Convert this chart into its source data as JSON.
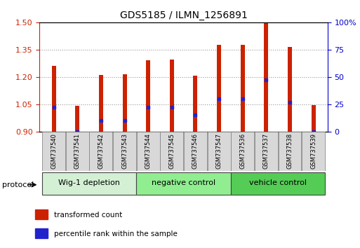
{
  "title": "GDS5185 / ILMN_1256891",
  "samples": [
    "GSM737540",
    "GSM737541",
    "GSM737542",
    "GSM737543",
    "GSM737544",
    "GSM737545",
    "GSM737546",
    "GSM737547",
    "GSM737536",
    "GSM737537",
    "GSM737538",
    "GSM737539"
  ],
  "bar_tops": [
    1.26,
    1.04,
    1.21,
    1.215,
    1.29,
    1.295,
    1.205,
    1.375,
    1.375,
    1.5,
    1.365,
    1.045
  ],
  "bar_base": 0.9,
  "percentile_values": [
    22,
    0,
    10,
    10,
    22,
    22,
    15,
    30,
    30,
    47,
    27,
    0
  ],
  "groups": [
    {
      "label": "Wig-1 depletion",
      "start": 0,
      "end": 4,
      "color": "#d4f0d4"
    },
    {
      "label": "negative control",
      "start": 4,
      "end": 8,
      "color": "#90ee90"
    },
    {
      "label": "vehicle control",
      "start": 8,
      "end": 12,
      "color": "#55cc55"
    }
  ],
  "ylim_left": [
    0.9,
    1.5
  ],
  "ylim_right": [
    0,
    100
  ],
  "yticks_left": [
    0.9,
    1.05,
    1.2,
    1.35,
    1.5
  ],
  "yticks_right": [
    0,
    25,
    50,
    75,
    100
  ],
  "bar_color": "#cc2200",
  "dot_color": "#2222cc",
  "grid_color": "#999999",
  "left_axis_color": "#cc2200",
  "right_axis_color": "#0000cc",
  "bar_width": 0.18,
  "legend_items": [
    {
      "label": "transformed count",
      "color": "#cc2200"
    },
    {
      "label": "percentile rank within the sample",
      "color": "#2222cc"
    }
  ]
}
